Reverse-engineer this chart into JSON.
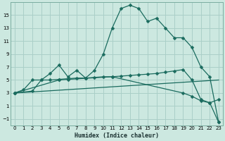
{
  "xlabel": "Humidex (Indice chaleur)",
  "bg_color": "#cce8e0",
  "grid_color": "#aacfc8",
  "line_color": "#1a6b5e",
  "xlim": [
    -0.5,
    23.5
  ],
  "ylim": [
    -2,
    17
  ],
  "xticks": [
    0,
    1,
    2,
    3,
    4,
    5,
    6,
    7,
    8,
    9,
    10,
    11,
    12,
    13,
    14,
    15,
    16,
    17,
    18,
    19,
    20,
    21,
    22,
    23
  ],
  "yticks": [
    -1,
    1,
    3,
    5,
    7,
    9,
    11,
    13,
    15
  ],
  "curve1_x": [
    0,
    1,
    2,
    3,
    4,
    5,
    6,
    7,
    8,
    9,
    10,
    11,
    12,
    13,
    14,
    15,
    16,
    17,
    18,
    19,
    20,
    21,
    22,
    23
  ],
  "curve1_y": [
    3.0,
    3.5,
    5.0,
    5.0,
    6.0,
    7.3,
    5.5,
    6.5,
    5.3,
    6.5,
    9.0,
    13.0,
    16.0,
    16.5,
    16.0,
    14.0,
    14.5,
    13.0,
    11.5,
    11.5,
    10.0,
    7.0,
    5.5,
    -1.5
  ],
  "curve2_x": [
    0,
    2,
    3,
    4,
    5,
    6,
    7,
    8,
    9,
    10,
    11,
    12,
    13,
    14,
    15,
    16,
    17,
    18,
    19,
    20,
    21,
    22,
    23
  ],
  "curve2_y": [
    3.0,
    3.3,
    5.0,
    5.0,
    5.1,
    5.2,
    5.3,
    5.3,
    5.4,
    5.5,
    5.5,
    5.6,
    5.7,
    5.8,
    5.9,
    6.0,
    6.2,
    6.4,
    6.6,
    5.0,
    2.0,
    1.5,
    2.0
  ],
  "curve3_x": [
    0,
    23
  ],
  "curve3_y": [
    3.0,
    5.0
  ],
  "curve4_x": [
    0,
    5,
    6,
    11,
    19,
    20,
    21,
    22,
    23
  ],
  "curve4_y": [
    3.0,
    5.0,
    5.1,
    5.5,
    3.0,
    2.5,
    1.8,
    1.5,
    -1.5
  ],
  "markersize": 2.5,
  "linewidth": 0.9
}
